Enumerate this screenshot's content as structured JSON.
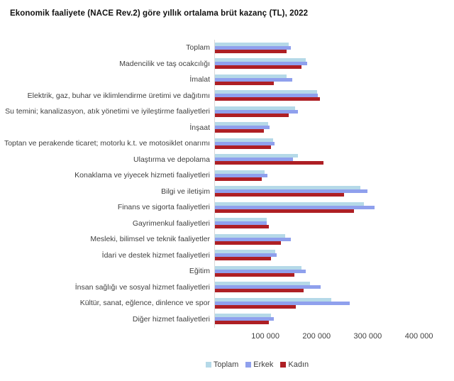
{
  "title": "Ekonomik faaliyete (NACE Rev.2) göre yıllık ortalama brüt kazanç (TL), 2022",
  "chart_data": {
    "type": "bar",
    "orientation": "horizontal",
    "title": "Ekonomik faaliyete (NACE Rev.2) göre yıllık ortalama brüt kazanç (TL), 2022",
    "categories": [
      "Toplam",
      "Madencilik ve taş ocakcılığı",
      "İmalat",
      "Elektrik, gaz, buhar ve iklimlendirme üretimi ve dağıtımı",
      "Su temini; kanalizasyon, atık yönetimi ve iyileştirme faaliyetleri",
      "İnşaat",
      "Toptan ve perakende ticaret; motorlu k.t. ve motosiklet onarımı",
      "Ulaştırma ve depolama",
      "Konaklama ve yiyecek hizmeti faaliyetleri",
      "Bilgi ve iletişim",
      "Finans ve sigorta faaliyetleri",
      "Gayrimenkul faaliyetleri",
      "Mesleki, bilimsel ve teknik faaliyetler",
      "İdari ve destek hizmet faaliyetleri",
      "Eğitim",
      "İnsan sağlığı ve sosyal hizmet faaliyetleri",
      "Kültür, sanat, eğlence, dinlence ve spor",
      "Diğer hizmet faaliyetleri"
    ],
    "series": [
      {
        "name": "Toplam",
        "color": "#B5D9E8",
        "values": [
          145000,
          179000,
          142000,
          201000,
          158000,
          105000,
          115000,
          164000,
          99000,
          285000,
          293000,
          103000,
          139000,
          119000,
          170000,
          187000,
          229000,
          111000
        ]
      },
      {
        "name": "Erkek",
        "color": "#8FA0ED",
        "values": [
          149000,
          181000,
          152000,
          203000,
          164000,
          108000,
          118000,
          154000,
          104000,
          300000,
          313000,
          103000,
          150000,
          122000,
          179000,
          208000,
          264000,
          117000
        ]
      },
      {
        "name": "Kadın",
        "color": "#AE1F24",
        "values": [
          141000,
          170000,
          117000,
          207000,
          145000,
          97000,
          111000,
          214000,
          93000,
          253000,
          273000,
          106000,
          130000,
          111000,
          156000,
          174000,
          160000,
          106000
        ]
      }
    ],
    "x_ticks": [
      "100 000",
      "200 000",
      "300 000",
      "400 000"
    ],
    "x_tick_values": [
      100000,
      200000,
      300000,
      400000
    ],
    "xlim": [
      0,
      420000
    ],
    "grid": false,
    "legend_position": "bottom"
  }
}
